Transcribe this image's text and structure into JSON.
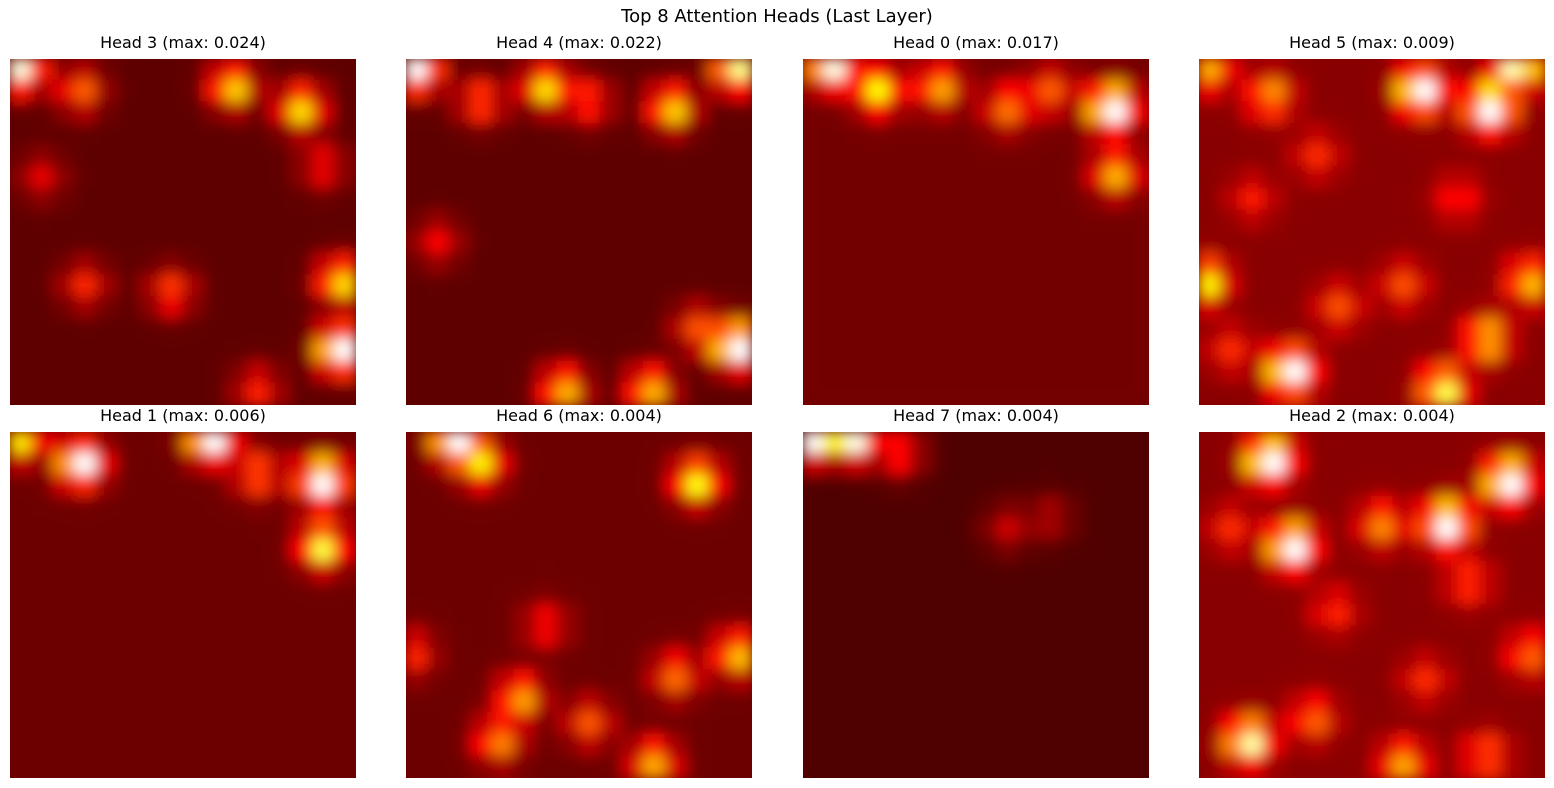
{
  "chart_data": {
    "type": "heatmap",
    "title": "Top 8 Attention Heads (Last Layer)",
    "colormap": "hot",
    "axes_visible": false,
    "grid_size": 16,
    "panels": [
      {
        "title": "Head 3 (max: 0.024)",
        "head": 3,
        "max": 0.024,
        "base": 0.12,
        "hotspots": [
          [
            0.5,
            0.5,
            0.85
          ],
          [
            15.3,
            13.5,
            1.0
          ],
          [
            10.3,
            1.3,
            0.6
          ],
          [
            13.5,
            2.3,
            0.6
          ],
          [
            15.3,
            10.3,
            0.62
          ],
          [
            3.3,
            1.5,
            0.4
          ],
          [
            7.5,
            10.8,
            0.35
          ],
          [
            3.5,
            10.5,
            0.3
          ],
          [
            14.5,
            5,
            0.25
          ],
          [
            11.5,
            15.3,
            0.3
          ],
          [
            1.5,
            5.5,
            0.2
          ]
        ]
      },
      {
        "title": "Head 4 (max: 0.022)",
        "head": 4,
        "max": 0.022,
        "base": 0.12,
        "hotspots": [
          [
            0.5,
            0.5,
            0.95
          ],
          [
            15.3,
            13.3,
            1.0
          ],
          [
            15.3,
            0.5,
            0.8
          ],
          [
            6.5,
            1.3,
            0.6
          ],
          [
            12.3,
            2.3,
            0.6
          ],
          [
            3.5,
            2,
            0.4
          ],
          [
            8.5,
            2.0,
            0.35
          ],
          [
            7.3,
            15.3,
            0.55
          ],
          [
            11.3,
            15.3,
            0.55
          ],
          [
            13.5,
            12.5,
            0.35
          ],
          [
            1.5,
            8.5,
            0.25
          ]
        ]
      },
      {
        "title": "Head 0 (max: 0.017)",
        "head": 0,
        "max": 0.017,
        "base": 0.15,
        "hotspots": [
          [
            1.3,
            0.3,
            0.9
          ],
          [
            14.3,
            2.3,
            1.0
          ],
          [
            3.5,
            1.5,
            0.6
          ],
          [
            6.3,
            1.3,
            0.5
          ],
          [
            9.5,
            2.3,
            0.4
          ],
          [
            14.5,
            5.3,
            0.5
          ],
          [
            11.5,
            1.5,
            0.35
          ]
        ]
      },
      {
        "title": "Head 5 (max: 0.009)",
        "head": 5,
        "max": 0.009,
        "base": 0.18,
        "hotspots": [
          [
            10.3,
            1.5,
            0.95
          ],
          [
            13.5,
            2.3,
            1.0
          ],
          [
            14.8,
            0.3,
            0.85
          ],
          [
            4.3,
            14.5,
            0.95
          ],
          [
            11.3,
            15.3,
            0.7
          ],
          [
            13.3,
            13.0,
            0.55
          ],
          [
            0.3,
            10.3,
            0.6
          ],
          [
            15.3,
            10.3,
            0.5
          ],
          [
            3.3,
            1.8,
            0.45
          ],
          [
            0.5,
            0.5,
            0.45
          ],
          [
            6.5,
            11.5,
            0.3
          ],
          [
            9.5,
            10.5,
            0.3
          ],
          [
            5.5,
            4.5,
            0.25
          ],
          [
            2.5,
            6.5,
            0.22
          ],
          [
            12.0,
            6.5,
            0.25
          ],
          [
            1.5,
            13.5,
            0.25
          ]
        ]
      },
      {
        "title": "Head 1 (max: 0.006)",
        "head": 1,
        "max": 0.006,
        "base": 0.14,
        "hotspots": [
          [
            3.3,
            1.5,
            0.9
          ],
          [
            9.3,
            0.3,
            0.95
          ],
          [
            14.5,
            2.3,
            1.0
          ],
          [
            14.5,
            5.3,
            0.7
          ],
          [
            0.5,
            0.3,
            0.6
          ],
          [
            11.5,
            2.0,
            0.4
          ]
        ]
      },
      {
        "title": "Head 6 (max: 0.004)",
        "head": 6,
        "max": 0.004,
        "base": 0.14,
        "hotspots": [
          [
            2.3,
            0.3,
            0.95
          ],
          [
            3.5,
            1.5,
            0.55
          ],
          [
            13.5,
            2.3,
            0.65
          ],
          [
            15.3,
            10.3,
            0.55
          ],
          [
            5.3,
            12.3,
            0.5
          ],
          [
            4.3,
            14.3,
            0.45
          ],
          [
            11.5,
            15.3,
            0.5
          ],
          [
            12.5,
            11.3,
            0.4
          ],
          [
            8.5,
            13.5,
            0.35
          ],
          [
            0.3,
            10.3,
            0.3
          ],
          [
            6.5,
            9.0,
            0.25
          ]
        ]
      },
      {
        "title": "Head 7 (max: 0.004)",
        "head": 7,
        "max": 0.004,
        "base": 0.1,
        "hotspots": [
          [
            0.3,
            0.3,
            0.95
          ],
          [
            2.3,
            0.3,
            0.95
          ],
          [
            4.5,
            1.0,
            0.35
          ],
          [
            9.5,
            4.5,
            0.18
          ],
          [
            11.5,
            4.0,
            0.15
          ]
        ]
      },
      {
        "title": "Head 2 (max: 0.004)",
        "head": 2,
        "max": 0.004,
        "base": 0.18,
        "hotspots": [
          [
            3.3,
            1.3,
            1.0
          ],
          [
            14.3,
            2.3,
            0.95
          ],
          [
            11.5,
            4.3,
            0.95
          ],
          [
            4.3,
            5.3,
            0.9
          ],
          [
            2.3,
            14.3,
            0.8
          ],
          [
            8.5,
            4.3,
            0.4
          ],
          [
            15.3,
            10.3,
            0.35
          ],
          [
            6.3,
            8.3,
            0.25
          ],
          [
            9.5,
            15.3,
            0.45
          ],
          [
            12.5,
            7.0,
            0.3
          ],
          [
            5.3,
            13.3,
            0.35
          ],
          [
            13.3,
            15.0,
            0.35
          ],
          [
            1.5,
            4.5,
            0.25
          ],
          [
            10.5,
            11.5,
            0.25
          ]
        ]
      }
    ]
  }
}
